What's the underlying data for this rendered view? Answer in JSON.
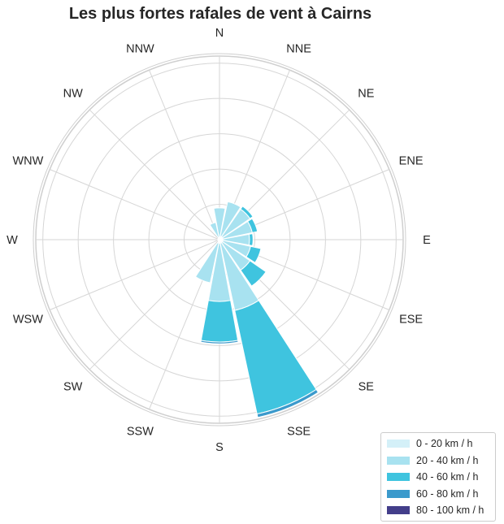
{
  "chart_data": {
    "type": "windrose",
    "title": "Les plus fortes rafales de vent à Cairns",
    "directions": [
      "N",
      "NNE",
      "NE",
      "ENE",
      "E",
      "ESE",
      "SE",
      "SSE",
      "S",
      "SSW",
      "SW",
      "WSW",
      "W",
      "WNW",
      "NW",
      "NNW"
    ],
    "radial_max": 5.2,
    "radial_gridlines": [
      1,
      2,
      3,
      4,
      5
    ],
    "grid": true,
    "legend_position": "bottom-right",
    "series": [
      {
        "name": "0 - 20 km / h",
        "color": "#d4f0f8",
        "values": [
          0.05,
          0.1,
          0.1,
          0.1,
          0.1,
          0.1,
          0.1,
          0.1,
          0.1,
          0.1,
          0.05,
          0.05,
          0.05,
          0.05,
          0.05,
          0.05
        ]
      },
      {
        "name": "20 - 40 km / h",
        "color": "#a8e2f0",
        "values": [
          0.85,
          1.0,
          0.95,
          0.85,
          0.75,
          0.8,
          0.95,
          1.95,
          1.65,
          1.15,
          0.0,
          0.0,
          0.0,
          0.0,
          0.0,
          0.45
        ]
      },
      {
        "name": "40 - 60 km / h",
        "color": "#3fc4df",
        "values": [
          0.0,
          0.0,
          0.1,
          0.15,
          0.1,
          0.3,
          0.55,
          3.0,
          1.15,
          0.0,
          0.0,
          0.0,
          0.0,
          0.0,
          0.0,
          0.0
        ]
      },
      {
        "name": "60 - 80 km / h",
        "color": "#3b9acc",
        "values": [
          0.0,
          0.0,
          0.0,
          0.0,
          0.0,
          0.0,
          0.0,
          0.1,
          0.05,
          0.0,
          0.0,
          0.0,
          0.0,
          0.0,
          0.0,
          0.0
        ]
      },
      {
        "name": "80 - 100 km / h",
        "color": "#433e8a",
        "values": [
          0.0,
          0.0,
          0.0,
          0.0,
          0.0,
          0.0,
          0.0,
          0.0,
          0.0,
          0.0,
          0.0,
          0.0,
          0.0,
          0.0,
          0.0,
          0.0
        ]
      }
    ]
  }
}
